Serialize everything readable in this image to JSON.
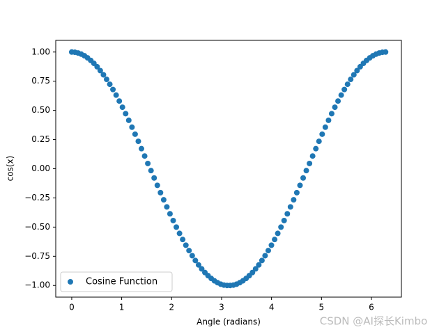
{
  "chart_data": {
    "type": "scatter",
    "xlabel": "Angle (radians)",
    "ylabel": "cos(x)",
    "series": [
      {
        "name": "Cosine Function",
        "color": "#1f77b4",
        "x": [
          0,
          0.063,
          0.127,
          0.19,
          0.254,
          0.317,
          0.381,
          0.444,
          0.508,
          0.571,
          0.635,
          0.698,
          0.762,
          0.825,
          0.889,
          0.952,
          1.015,
          1.079,
          1.142,
          1.206,
          1.269,
          1.333,
          1.396,
          1.46,
          1.523,
          1.587,
          1.65,
          1.714,
          1.777,
          1.841,
          1.904,
          1.967,
          2.031,
          2.094,
          2.158,
          2.221,
          2.285,
          2.348,
          2.412,
          2.475,
          2.539,
          2.602,
          2.666,
          2.729,
          2.793,
          2.856,
          2.919,
          2.983,
          3.046,
          3.11,
          3.173,
          3.237,
          3.3,
          3.364,
          3.427,
          3.491,
          3.554,
          3.618,
          3.681,
          3.745,
          3.808,
          3.871,
          3.935,
          3.998,
          4.062,
          4.125,
          4.189,
          4.252,
          4.316,
          4.379,
          4.443,
          4.506,
          4.57,
          4.633,
          4.696,
          4.76,
          4.823,
          4.887,
          4.95,
          5.014,
          5.077,
          5.141,
          5.204,
          5.268,
          5.331,
          5.395,
          5.458,
          5.522,
          5.585,
          5.648,
          5.712,
          5.775,
          5.839,
          5.902,
          5.966,
          6.029,
          6.093,
          6.156,
          6.22,
          6.283
        ],
        "values": [
          1,
          0.998,
          0.992,
          0.982,
          0.968,
          0.95,
          0.928,
          0.903,
          0.874,
          0.841,
          0.805,
          0.766,
          0.724,
          0.679,
          0.631,
          0.58,
          0.527,
          0.472,
          0.415,
          0.356,
          0.296,
          0.235,
          0.172,
          0.109,
          0.045,
          -0.016,
          -0.079,
          -0.142,
          -0.205,
          -0.266,
          -0.327,
          -0.386,
          -0.444,
          -0.5,
          -0.554,
          -0.606,
          -0.655,
          -0.701,
          -0.745,
          -0.786,
          -0.824,
          -0.858,
          -0.889,
          -0.916,
          -0.94,
          -0.96,
          -0.976,
          -0.989,
          -0.997,
          -1.0,
          -1.0,
          -0.997,
          -0.989,
          -0.976,
          -0.96,
          -0.94,
          -0.916,
          -0.889,
          -0.858,
          -0.824,
          -0.786,
          -0.745,
          -0.701,
          -0.655,
          -0.606,
          -0.554,
          -0.5,
          -0.444,
          -0.386,
          -0.327,
          -0.266,
          -0.205,
          -0.142,
          -0.079,
          -0.016,
          0.045,
          0.109,
          0.172,
          0.235,
          0.296,
          0.356,
          0.415,
          0.472,
          0.527,
          0.58,
          0.631,
          0.679,
          0.724,
          0.766,
          0.805,
          0.841,
          0.874,
          0.903,
          0.928,
          0.95,
          0.968,
          0.982,
          0.992,
          0.998,
          1
        ]
      }
    ],
    "xlim": [
      -0.32,
      6.6
    ],
    "ylim": [
      -1.1,
      1.1
    ],
    "xticks": [
      0,
      1,
      2,
      3,
      4,
      5,
      6
    ],
    "yticks": [
      {
        "value": -1,
        "label": "−1.00"
      },
      {
        "value": -0.75,
        "label": "−0.75"
      },
      {
        "value": -0.5,
        "label": "−0.50"
      },
      {
        "value": -0.25,
        "label": "−0.25"
      },
      {
        "value": 0,
        "label": "0.00"
      },
      {
        "value": 0.25,
        "label": "0.25"
      },
      {
        "value": 0.5,
        "label": "0.50"
      },
      {
        "value": 0.75,
        "label": "0.75"
      },
      {
        "value": 1,
        "label": "1.00"
      }
    ],
    "legend": "lower left",
    "watermark": "CSDN @AI探长Kimbo"
  }
}
